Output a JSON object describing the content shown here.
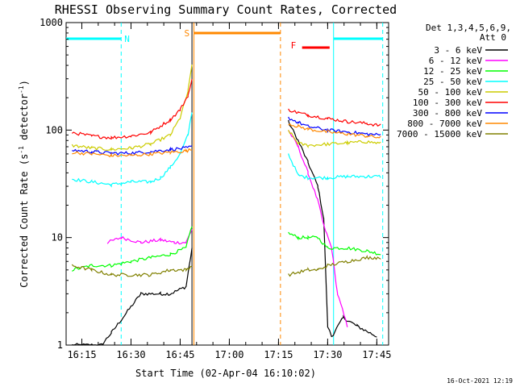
{
  "chart_data": {
    "type": "line",
    "title": "RHESSI Observing Summary Count Rates, Corrected",
    "xlabel": "Start Time (02-Apr-04 16:10:02)",
    "ylabel": "Corrected Count Rate (s",
    "ylabel_sup": "-1",
    "ylabel_tail": " detector",
    "ylabel_sup2": "-1",
    "ylabel_end": ")",
    "x_range_minutes": [
      16.17,
      17.81
    ],
    "x_ticks": [
      {
        "label": "16:15",
        "t": 16.25
      },
      {
        "label": "16:30",
        "t": 16.5
      },
      {
        "label": "16:45",
        "t": 16.75
      },
      {
        "label": "17:00",
        "t": 17.0
      },
      {
        "label": "17:15",
        "t": 17.25
      },
      {
        "label": "17:30",
        "t": 17.5
      },
      {
        "label": "17:45",
        "t": 17.75
      }
    ],
    "y_scale": "log",
    "y_range": [
      1,
      1000
    ],
    "y_ticks": [
      {
        "label": "1",
        "v": 1
      },
      {
        "label": "10",
        "v": 10
      },
      {
        "label": "100",
        "v": 100
      },
      {
        "label": "1000",
        "v": 1000
      }
    ],
    "legend": {
      "header1": "Det 1,3,4,5,6,9,",
      "header2": "Att 0",
      "placement": "right-outside"
    },
    "series": [
      {
        "name": "3 - 6 keV",
        "color": "#000000",
        "x": [
          16.2,
          16.35,
          16.4,
          16.55,
          16.65,
          16.7,
          16.78,
          16.81,
          17.3,
          17.35,
          17.4,
          17.45,
          17.48,
          17.5,
          17.52,
          17.58,
          17.65,
          17.75
        ],
        "y": [
          1,
          1,
          1.3,
          3,
          3,
          3,
          3.5,
          8,
          120,
          80,
          50,
          30,
          15,
          1.5,
          1.2,
          1.8,
          1.5,
          1.2
        ]
      },
      {
        "name": "6 - 12 keV",
        "color": "#ff00ff",
        "x": [
          16.38,
          16.45,
          16.55,
          16.65,
          16.72,
          16.78,
          16.81,
          17.3,
          17.35,
          17.4,
          17.45,
          17.48,
          17.52,
          17.55,
          17.6
        ],
        "y": [
          9,
          10,
          9,
          9.5,
          9,
          9,
          12,
          100,
          70,
          40,
          22,
          13,
          8,
          3,
          1.5
        ]
      },
      {
        "name": "12 - 25 keV",
        "color": "#00ff00",
        "x": [
          16.2,
          16.3,
          16.4,
          16.5,
          16.6,
          16.7,
          16.78,
          16.81,
          17.3,
          17.35,
          17.4,
          17.45,
          17.5,
          17.6,
          17.7,
          17.77
        ],
        "y": [
          5,
          5.5,
          5.5,
          6,
          6.5,
          7,
          8,
          13,
          11,
          10,
          10,
          10,
          8,
          8,
          7.5,
          7
        ]
      },
      {
        "name": "25 - 50 keV",
        "color": "#00ffff",
        "x": [
          16.2,
          16.3,
          16.4,
          16.5,
          16.6,
          16.65,
          16.7,
          16.75,
          16.79,
          16.81,
          17.3,
          17.35,
          17.4,
          17.5,
          17.6,
          17.7,
          17.77
        ],
        "y": [
          35,
          33,
          31,
          33,
          33,
          36,
          45,
          60,
          90,
          150,
          60,
          38,
          36,
          36,
          37,
          37,
          37
        ]
      },
      {
        "name": "50 - 100 keV",
        "color": "#cccc00",
        "x": [
          16.2,
          16.3,
          16.4,
          16.5,
          16.6,
          16.7,
          16.75,
          16.79,
          16.81,
          17.3,
          17.35,
          17.4,
          17.5,
          17.6,
          17.7,
          17.77
        ],
        "y": [
          72,
          68,
          66,
          68,
          74,
          90,
          130,
          230,
          400,
          100,
          75,
          72,
          74,
          76,
          78,
          75
        ]
      },
      {
        "name": "100 - 300 keV",
        "color": "#ff0000",
        "x": [
          16.2,
          16.3,
          16.4,
          16.5,
          16.6,
          16.7,
          16.75,
          16.79,
          16.81,
          17.3,
          17.35,
          17.4,
          17.5,
          17.6,
          17.7,
          17.77
        ],
        "y": [
          95,
          88,
          85,
          88,
          95,
          125,
          155,
          210,
          290,
          155,
          145,
          138,
          128,
          120,
          115,
          110
        ]
      },
      {
        "name": "300 - 800 keV",
        "color": "#0000ff",
        "x": [
          16.2,
          16.3,
          16.4,
          16.5,
          16.6,
          16.7,
          16.78,
          16.81,
          17.3,
          17.35,
          17.4,
          17.5,
          17.6,
          17.7,
          17.77
        ],
        "y": [
          65,
          63,
          61,
          61,
          63,
          66,
          68,
          70,
          130,
          118,
          108,
          100,
          96,
          92,
          90
        ]
      },
      {
        "name": "800 - 7000 keV",
        "color": "#ff8800",
        "x": [
          16.2,
          16.3,
          16.4,
          16.5,
          16.6,
          16.7,
          16.78,
          16.81,
          17.3,
          17.35,
          17.4,
          17.5,
          17.6,
          17.7,
          17.77
        ],
        "y": [
          62,
          60,
          58,
          58,
          60,
          62,
          64,
          66,
          115,
          108,
          102,
          96,
          92,
          88,
          85
        ]
      },
      {
        "name": "7000 - 15000 keV",
        "color": "#808000",
        "x": [
          16.2,
          16.3,
          16.4,
          16.5,
          16.6,
          16.7,
          16.78,
          16.81,
          17.3,
          17.4,
          17.45,
          17.5,
          17.6,
          17.7,
          17.77
        ],
        "y": [
          5.5,
          5,
          4.5,
          4.5,
          4.5,
          5,
          5,
          5.5,
          4.5,
          5,
          5,
          5.5,
          6,
          6.5,
          6.5
        ]
      }
    ],
    "annotations": {
      "night": [
        {
          "label": "N",
          "color": "#00ffff",
          "t_start": 16.17,
          "t_end": 16.45
        },
        {
          "label": "",
          "color": "#00ffff",
          "t_start": 17.53,
          "t_end": 17.78
        }
      ],
      "saa": {
        "label": "S",
        "color": "#ff8800",
        "t_start": 16.82,
        "t_end": 17.26
      },
      "flare": {
        "label": "F",
        "color": "#ff0000",
        "t_start": 17.37,
        "t_end": 17.51
      },
      "vlines": [
        {
          "t": 16.45,
          "color": "#00ffff",
          "style": "dashed"
        },
        {
          "t": 17.53,
          "color": "#00ffff",
          "style": "solid"
        },
        {
          "t": 17.78,
          "color": "#00ffff",
          "style": "dashed"
        },
        {
          "t": 16.82,
          "color": "#ff8800",
          "style": "solid"
        },
        {
          "t": 17.26,
          "color": "#ff8800",
          "style": "dashed"
        },
        {
          "t": 16.81,
          "color": "#000000",
          "style": "solid"
        }
      ]
    },
    "footer": "16-Oct-2021 12:19"
  }
}
